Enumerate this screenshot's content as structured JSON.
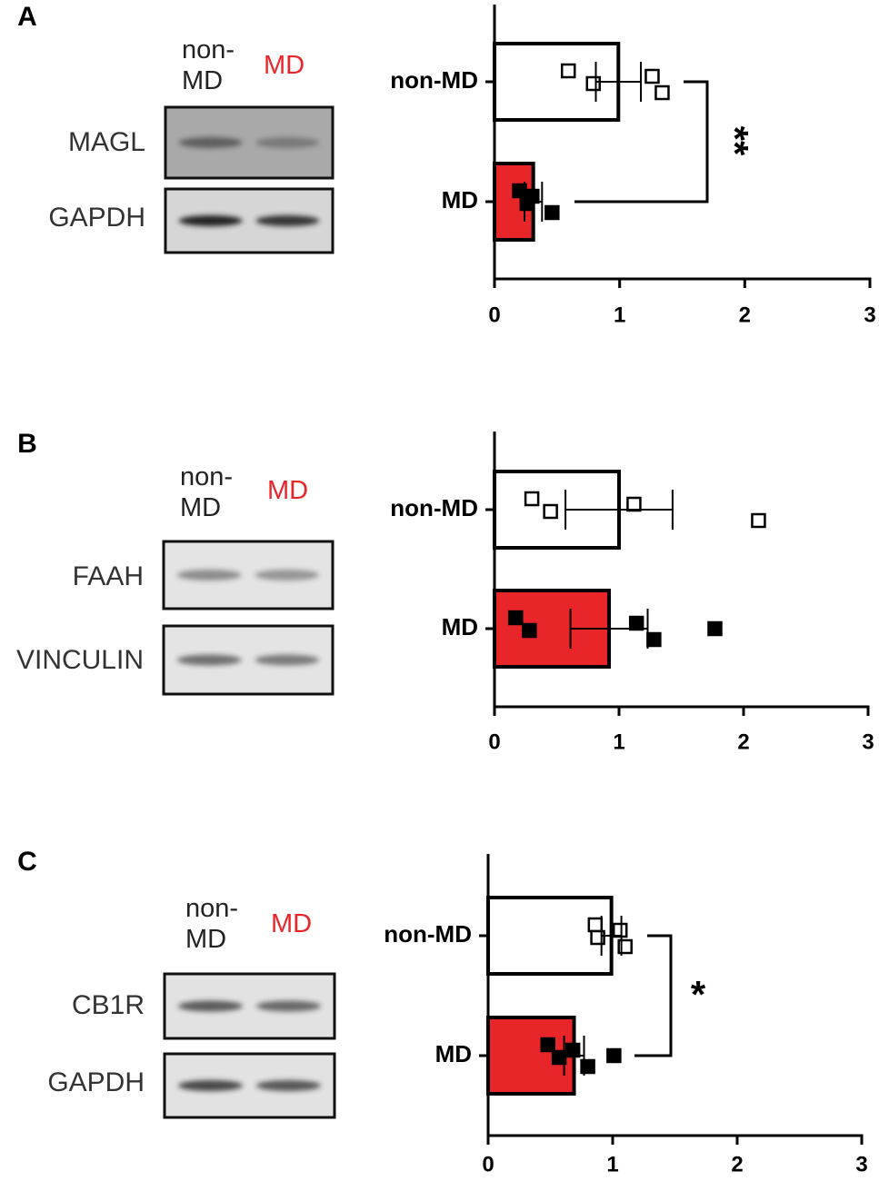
{
  "chart_data": [
    {
      "type": "bar",
      "orientation": "horizontal",
      "panel": "A",
      "blot": {
        "lanes": [
          "non-MD",
          "MD"
        ],
        "proteins": [
          "MAGL",
          "GAPDH"
        ]
      },
      "categories": [
        "non-MD",
        "MD"
      ],
      "colors": [
        "#ffffff",
        "#e8262a"
      ],
      "point_colors": [
        "#ffffff",
        "#000000"
      ],
      "values": [
        0.99,
        0.31
      ],
      "errors": [
        0.18,
        0.07
      ],
      "points": [
        [
          0.59,
          0.79,
          1.26,
          1.34
        ],
        [
          0.2,
          0.26,
          0.3,
          0.46
        ]
      ],
      "xlim": [
        0,
        3
      ],
      "xticks": [
        0,
        1,
        2,
        3
      ],
      "significance": "**"
    },
    {
      "type": "bar",
      "orientation": "horizontal",
      "panel": "B",
      "blot": {
        "lanes": [
          "non-MD",
          "MD"
        ],
        "proteins": [
          "FAAH",
          "VINCULIN"
        ]
      },
      "categories": [
        "non-MD",
        "MD"
      ],
      "colors": [
        "#ffffff",
        "#e8262a"
      ],
      "point_colors": [
        "#ffffff",
        "#000000"
      ],
      "values": [
        1.0,
        0.92
      ],
      "errors": [
        0.43,
        0.31
      ],
      "points": [
        [
          0.3,
          0.45,
          1.12,
          2.12
        ],
        [
          0.17,
          0.28,
          1.14,
          1.28,
          1.77
        ]
      ],
      "xlim": [
        0,
        3
      ],
      "xticks": [
        0,
        1,
        2,
        3
      ]
    },
    {
      "type": "bar",
      "orientation": "horizontal",
      "panel": "C",
      "blot": {
        "lanes": [
          "non-MD",
          "MD"
        ],
        "proteins": [
          "CB1R",
          "GAPDH"
        ]
      },
      "categories": [
        "non-MD",
        "MD"
      ],
      "colors": [
        "#ffffff",
        "#e8262a"
      ],
      "point_colors": [
        "#ffffff",
        "#000000"
      ],
      "values": [
        0.99,
        0.69
      ],
      "errors": [
        0.08,
        0.08
      ],
      "points": [
        [
          0.86,
          0.88,
          1.06,
          1.1
        ],
        [
          0.48,
          0.57,
          0.68,
          0.8,
          1.01
        ]
      ],
      "xlim": [
        0,
        3
      ],
      "xticks": [
        0,
        1,
        2,
        3
      ],
      "significance": "*"
    }
  ]
}
